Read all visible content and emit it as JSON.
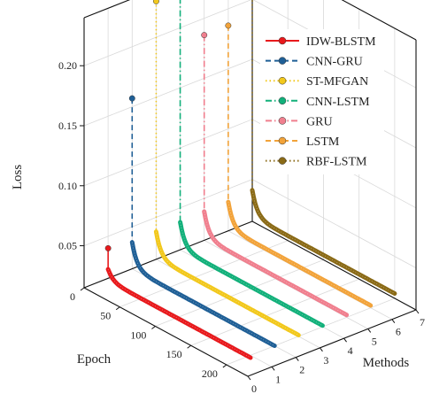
{
  "chart_data": {
    "type": "line",
    "title": "",
    "xlabel": "Epoch",
    "ylabel": "Methods",
    "zlabel": "Loss",
    "xlim": [
      0,
      230
    ],
    "ylim": [
      0,
      7
    ],
    "zlim": [
      0.015,
      0.24
    ],
    "x_ticks": [
      0,
      50,
      100,
      150,
      200
    ],
    "y_ticks": [
      0,
      1,
      2,
      3,
      4,
      5,
      6,
      7
    ],
    "z_ticks": [
      0.05,
      0.1,
      0.15,
      0.2
    ],
    "z_tick_labels": [
      "0.05",
      "0.10",
      "0.15",
      "0.20"
    ],
    "grid": true,
    "legend_position": "top-right",
    "series": [
      {
        "name": "IDW-BLSTM",
        "method": 1,
        "color": "#e8191c",
        "dash": "solid",
        "initial_loss": 0.04,
        "final_loss": 0.013
      },
      {
        "name": "CNN-GRU",
        "method": 2,
        "color": "#1f5f96",
        "dash": "dash",
        "initial_loss": 0.157,
        "final_loss": 0.015
      },
      {
        "name": "ST-MFGAN",
        "method": 3,
        "color": "#f2c81c",
        "dash": "dot",
        "initial_loss": 0.23,
        "final_loss": 0.016
      },
      {
        "name": "CNN-LSTM",
        "method": 4,
        "color": "#12b07a",
        "dash": "dashdot",
        "initial_loss": 0.236,
        "final_loss": 0.016
      },
      {
        "name": "GRU",
        "method": 5,
        "color": "#f07f8e",
        "dash": "dashdot",
        "initial_loss": 0.186,
        "final_loss": 0.017
      },
      {
        "name": "LSTM",
        "method": 6,
        "color": "#f2a33a",
        "dash": "dash",
        "initial_loss": 0.186,
        "final_loss": 0.017
      },
      {
        "name": "RBF-LSTM",
        "method": 7,
        "color": "#8a6a16",
        "dash": "dot",
        "initial_loss": 0.229,
        "final_loss": 0.019
      }
    ]
  }
}
